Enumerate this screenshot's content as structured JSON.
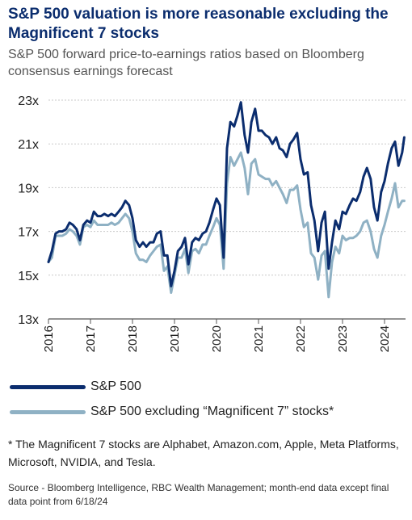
{
  "title": "S&P 500 valuation is more reasonable excluding the Magnificent 7 stocks",
  "subtitle": "S&P 500 forward price-to-earnings ratios based on Bloomberg consensus earnings forecast",
  "footnote": "* The Magnificent 7 stocks are Alphabet, Amazon.com, Apple, Meta Platforms, Microsoft, NVIDIA, and Tesla.",
  "source": "Source - Bloomberg Intelligence, RBC Wealth Management; month-end data except final data point from 6/18/24",
  "colors": {
    "sp500": "#0b2d6e",
    "ex_mag7": "#8fb1c4",
    "grid": "#c9c9c9",
    "axis": "#555555"
  },
  "chart_data": {
    "type": "line",
    "title": "S&P 500 valuation is more reasonable excluding the Magnificent 7 stocks",
    "subtitle": "S&P 500 forward price-to-earnings ratios based on Bloomberg consensus earnings forecast",
    "xlabel": "",
    "ylabel": "",
    "xlim": [
      2016.0,
      2024.5
    ],
    "ylim": [
      13,
      23
    ],
    "y_ticks": [
      13,
      15,
      17,
      19,
      21,
      23
    ],
    "y_tick_labels": [
      "13x",
      "15x",
      "17x",
      "19x",
      "21x",
      "23x"
    ],
    "x_ticks": [
      2016,
      2017,
      2018,
      2019,
      2020,
      2021,
      2022,
      2023,
      2024
    ],
    "x_tick_labels": [
      "2016",
      "2017",
      "2018",
      "2019",
      "2020",
      "2021",
      "2022",
      "2023",
      "2024"
    ],
    "grid": true,
    "legend_position": "bottom",
    "series": [
      {
        "name": "S&P 500",
        "x": [
          2016.0,
          2016.08,
          2016.17,
          2016.25,
          2016.33,
          2016.42,
          2016.5,
          2016.58,
          2016.67,
          2016.75,
          2016.83,
          2016.92,
          2017.0,
          2017.08,
          2017.17,
          2017.25,
          2017.33,
          2017.42,
          2017.5,
          2017.58,
          2017.67,
          2017.75,
          2017.83,
          2017.92,
          2018.0,
          2018.08,
          2018.17,
          2018.25,
          2018.33,
          2018.42,
          2018.5,
          2018.58,
          2018.67,
          2018.75,
          2018.83,
          2018.92,
          2019.0,
          2019.08,
          2019.17,
          2019.25,
          2019.33,
          2019.42,
          2019.5,
          2019.58,
          2019.67,
          2019.75,
          2019.83,
          2019.92,
          2020.0,
          2020.08,
          2020.17,
          2020.25,
          2020.33,
          2020.42,
          2020.5,
          2020.58,
          2020.67,
          2020.75,
          2020.83,
          2020.92,
          2021.0,
          2021.08,
          2021.17,
          2021.25,
          2021.33,
          2021.42,
          2021.5,
          2021.58,
          2021.67,
          2021.75,
          2021.83,
          2021.92,
          2022.0,
          2022.08,
          2022.17,
          2022.25,
          2022.33,
          2022.42,
          2022.5,
          2022.58,
          2022.67,
          2022.75,
          2022.83,
          2022.92,
          2023.0,
          2023.08,
          2023.17,
          2023.25,
          2023.33,
          2023.42,
          2023.5,
          2023.58,
          2023.67,
          2023.75,
          2023.83,
          2023.92,
          2024.0,
          2024.08,
          2024.17,
          2024.25,
          2024.33,
          2024.42,
          2024.47
        ],
        "values": [
          15.6,
          16.1,
          16.9,
          17.0,
          17.0,
          17.1,
          17.4,
          17.3,
          17.1,
          16.6,
          17.3,
          17.5,
          17.4,
          17.9,
          17.7,
          17.7,
          17.8,
          17.7,
          17.8,
          17.7,
          17.9,
          18.1,
          18.4,
          18.2,
          17.6,
          16.6,
          16.3,
          16.5,
          16.3,
          16.5,
          16.5,
          16.9,
          17.0,
          15.9,
          15.9,
          14.5,
          15.2,
          16.1,
          16.3,
          16.7,
          15.5,
          16.5,
          16.7,
          16.6,
          16.9,
          17.0,
          17.4,
          18.0,
          18.5,
          18.2,
          15.8,
          20.8,
          22.0,
          21.8,
          22.3,
          22.9,
          21.4,
          20.6,
          22.0,
          22.6,
          21.6,
          21.6,
          21.4,
          21.3,
          21.0,
          21.3,
          20.8,
          20.7,
          20.4,
          21.0,
          21.2,
          21.5,
          20.3,
          19.6,
          19.7,
          18.2,
          17.5,
          16.1,
          17.4,
          17.9,
          15.3,
          16.5,
          17.5,
          17.1,
          17.9,
          17.8,
          18.2,
          18.5,
          18.4,
          18.8,
          19.5,
          19.9,
          19.4,
          18.1,
          17.5,
          18.8,
          19.3,
          20.1,
          20.8,
          21.1,
          20.0,
          20.6,
          21.3
        ]
      },
      {
        "name": "S&P 500 excluding “Magnificent 7” stocks*",
        "x": [
          2016.0,
          2016.08,
          2016.17,
          2016.25,
          2016.33,
          2016.42,
          2016.5,
          2016.58,
          2016.67,
          2016.75,
          2016.83,
          2016.92,
          2017.0,
          2017.08,
          2017.17,
          2017.25,
          2017.33,
          2017.42,
          2017.5,
          2017.58,
          2017.67,
          2017.75,
          2017.83,
          2017.92,
          2018.0,
          2018.08,
          2018.17,
          2018.25,
          2018.33,
          2018.42,
          2018.5,
          2018.58,
          2018.67,
          2018.75,
          2018.83,
          2018.92,
          2019.0,
          2019.08,
          2019.17,
          2019.25,
          2019.33,
          2019.42,
          2019.5,
          2019.58,
          2019.67,
          2019.75,
          2019.83,
          2019.92,
          2020.0,
          2020.08,
          2020.17,
          2020.25,
          2020.33,
          2020.42,
          2020.5,
          2020.58,
          2020.67,
          2020.75,
          2020.83,
          2020.92,
          2021.0,
          2021.08,
          2021.17,
          2021.25,
          2021.33,
          2021.42,
          2021.5,
          2021.58,
          2021.67,
          2021.75,
          2021.83,
          2021.92,
          2022.0,
          2022.08,
          2022.17,
          2022.25,
          2022.33,
          2022.42,
          2022.5,
          2022.58,
          2022.67,
          2022.75,
          2022.83,
          2022.92,
          2023.0,
          2023.08,
          2023.17,
          2023.25,
          2023.33,
          2023.42,
          2023.5,
          2023.58,
          2023.67,
          2023.75,
          2023.83,
          2023.92,
          2024.0,
          2024.08,
          2024.17,
          2024.25,
          2024.33,
          2024.42,
          2024.47
        ],
        "values": [
          15.6,
          15.8,
          16.8,
          16.8,
          16.8,
          16.9,
          17.1,
          17.0,
          16.8,
          16.4,
          17.2,
          17.3,
          17.2,
          17.5,
          17.3,
          17.3,
          17.3,
          17.3,
          17.4,
          17.3,
          17.4,
          17.6,
          17.8,
          17.6,
          17.0,
          16.0,
          15.7,
          15.7,
          15.6,
          15.9,
          16.1,
          16.3,
          16.4,
          15.2,
          15.4,
          14.2,
          15.0,
          15.8,
          15.8,
          16.2,
          15.1,
          16.1,
          16.2,
          16.0,
          16.4,
          16.4,
          16.8,
          17.2,
          17.6,
          17.3,
          15.3,
          19.2,
          20.4,
          20.0,
          20.3,
          20.6,
          19.9,
          18.7,
          20.1,
          20.3,
          19.6,
          19.5,
          19.4,
          19.4,
          19.1,
          19.3,
          19.0,
          18.7,
          18.3,
          18.9,
          18.9,
          19.1,
          18.0,
          17.2,
          17.4,
          16.0,
          15.8,
          14.8,
          15.9,
          16.1,
          14.0,
          15.6,
          16.3,
          16.0,
          16.8,
          16.6,
          16.7,
          16.7,
          16.8,
          17.0,
          17.4,
          17.5,
          17.0,
          16.2,
          15.8,
          16.8,
          17.3,
          17.9,
          18.5,
          19.2,
          18.1,
          18.4,
          18.4
        ]
      }
    ]
  }
}
